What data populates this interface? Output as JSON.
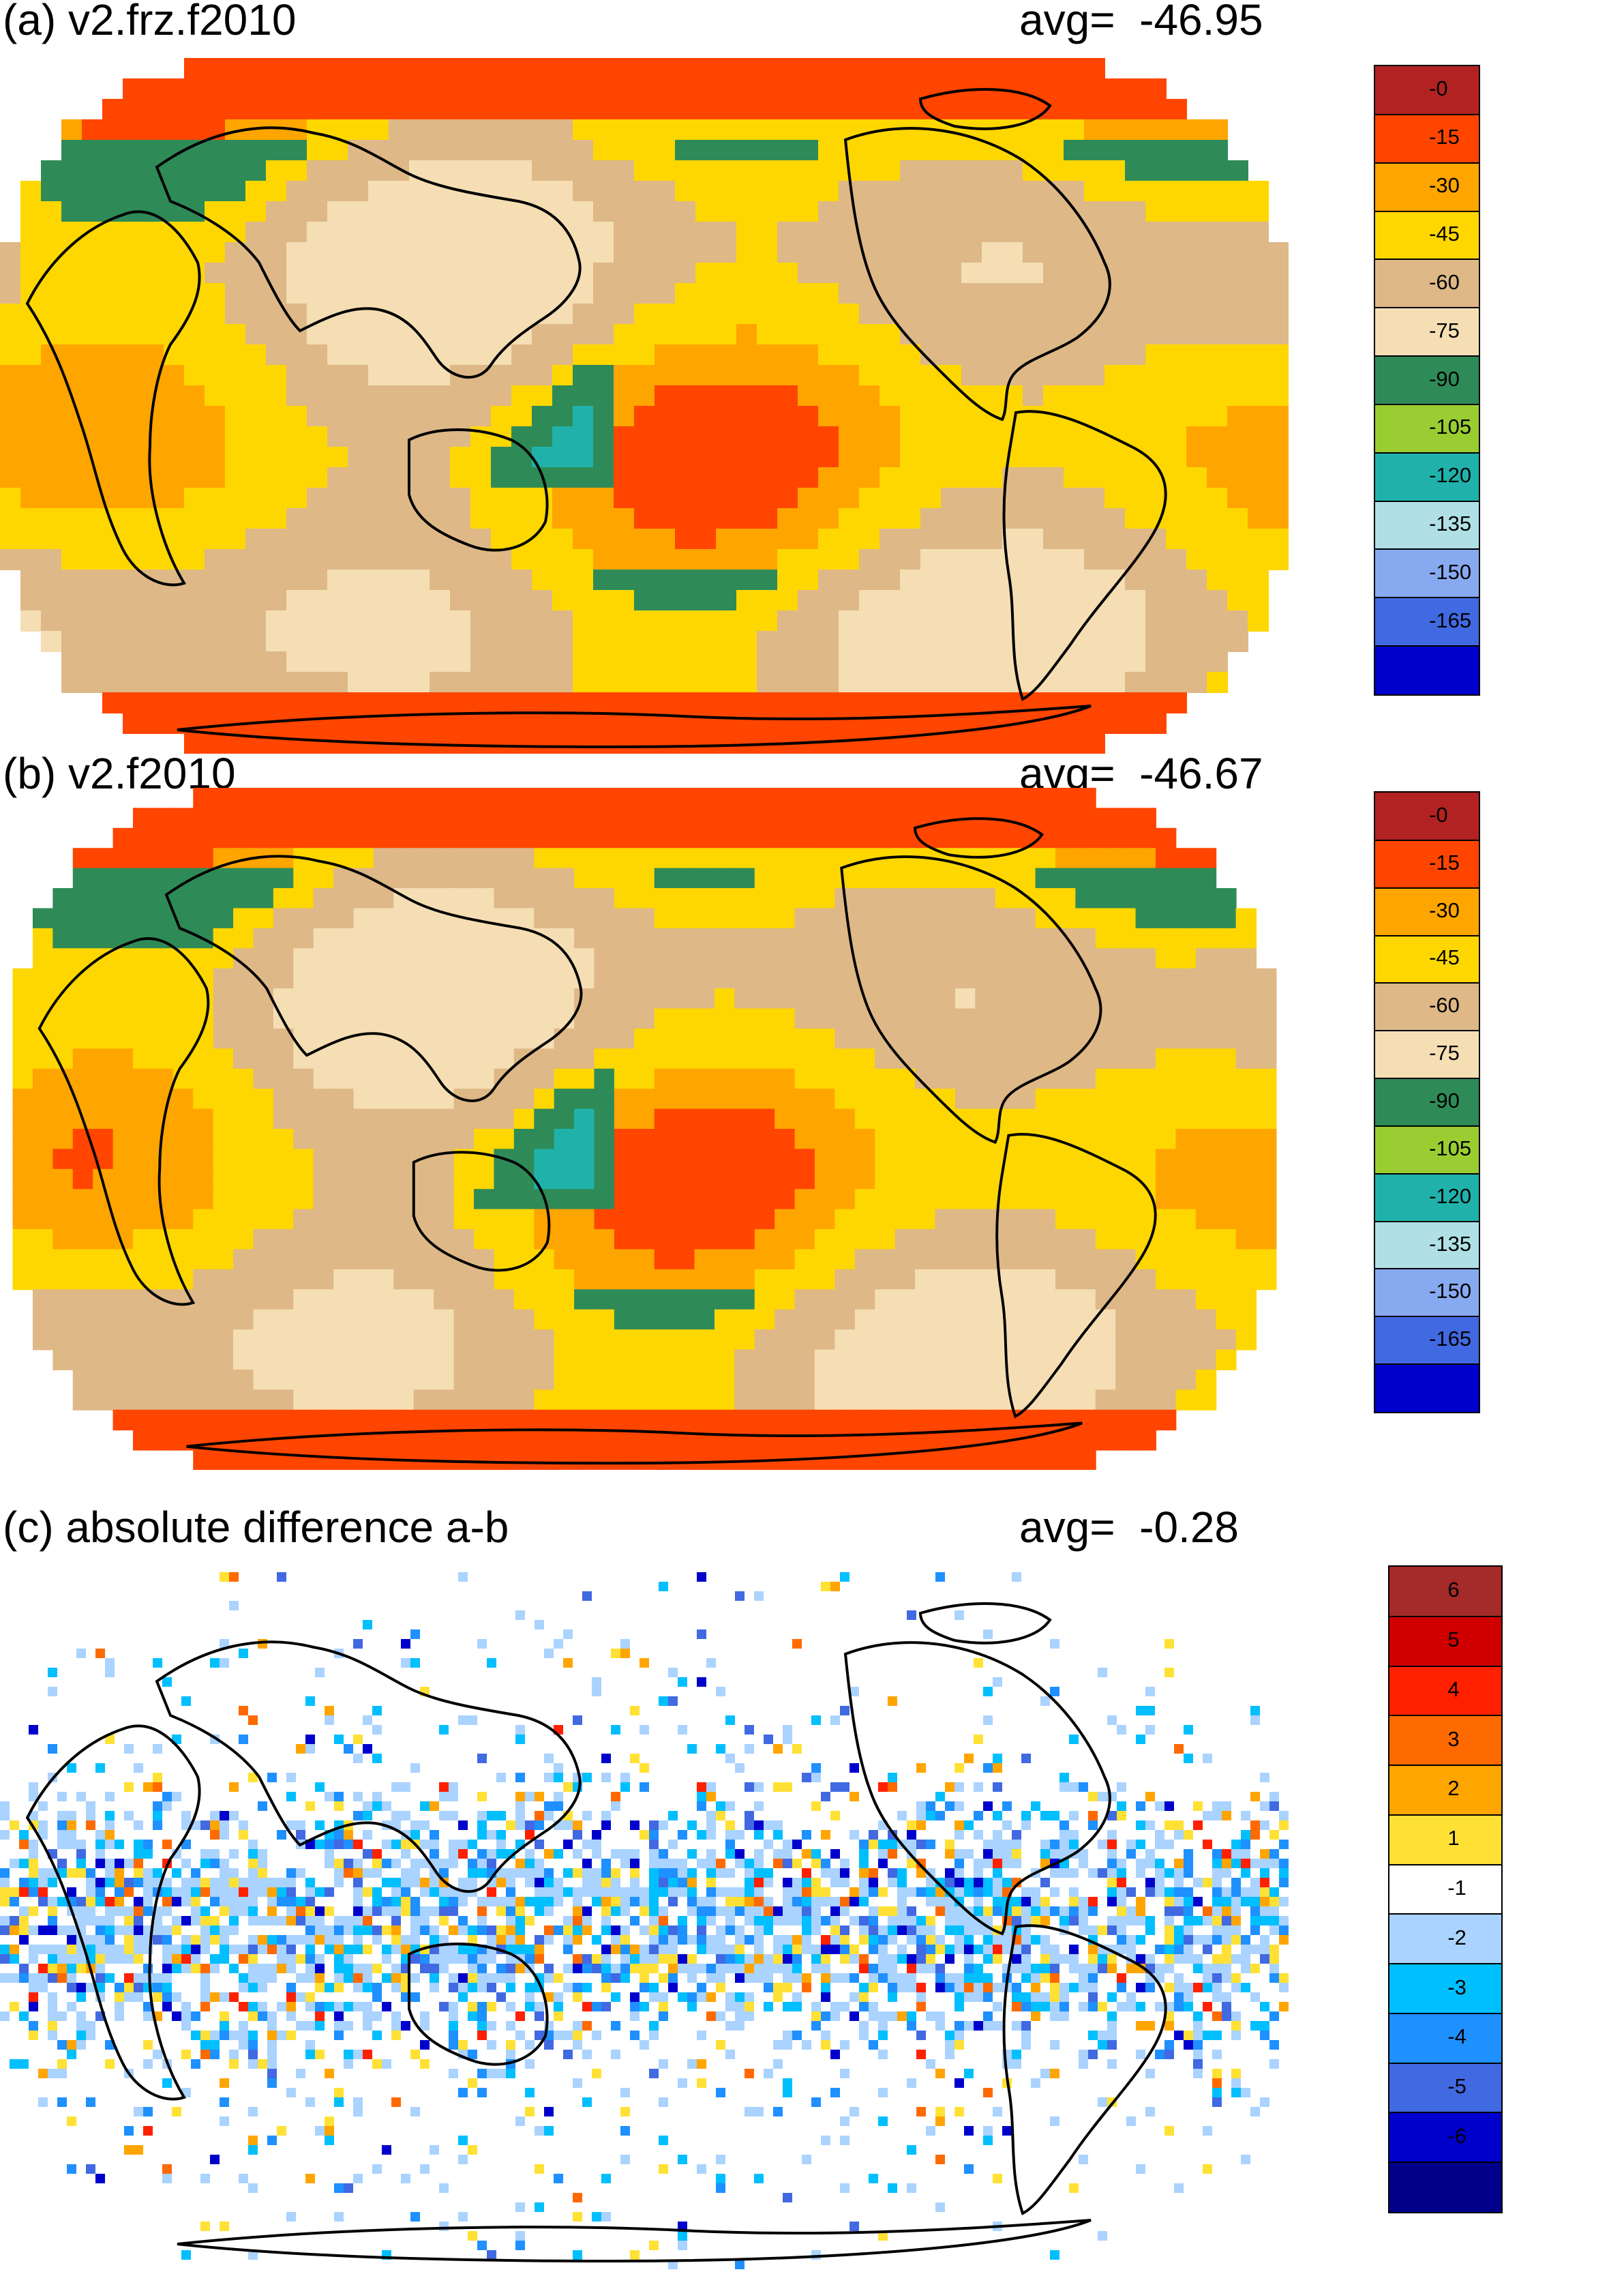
{
  "panels": [
    {
      "title": "(a) v2.frz.f2010",
      "avg_label": "avg=",
      "avg_value": "-46.95",
      "colorbar": {
        "colors": [
          "#b22222",
          "#ff4500",
          "#ffa500",
          "#ffd700",
          "#deb887",
          "#f5deb3",
          "#2e8b57",
          "#9acd32",
          "#20b2aa",
          "#b0e0e6",
          "#87a9f0",
          "#4169e1",
          "#0000cd"
        ],
        "labels": [
          "-0",
          "-15",
          "-30",
          "-45",
          "-60",
          "-75",
          "-90",
          "-105",
          "-120",
          "-135",
          "-150",
          "-165"
        ]
      }
    },
    {
      "title": "(b) v2.f2010",
      "avg_label": "avg=",
      "avg_value": "-46.67",
      "colorbar": {
        "colors": [
          "#b22222",
          "#ff4500",
          "#ffa500",
          "#ffd700",
          "#deb887",
          "#f5deb3",
          "#2e8b57",
          "#9acd32",
          "#20b2aa",
          "#b0e0e6",
          "#87a9f0",
          "#4169e1",
          "#0000cd"
        ],
        "labels": [
          "-0",
          "-15",
          "-30",
          "-45",
          "-60",
          "-75",
          "-90",
          "-105",
          "-120",
          "-135",
          "-150",
          "-165"
        ]
      }
    },
    {
      "title": "(c) absolute difference a-b",
      "avg_label": "avg=",
      "avg_value": "-0.28",
      "colorbar": {
        "colors": [
          "#a52a2a",
          "#d00000",
          "#ff2000",
          "#ff6a00",
          "#ffa500",
          "#ffe135",
          "#ffffff",
          "#aad3ff",
          "#00bfff",
          "#1e90ff",
          "#4169e1",
          "#0000cd",
          "#00008b"
        ],
        "labels": [
          "6",
          "5",
          "4",
          "3",
          "2",
          "1",
          "-1",
          "-2",
          "-3",
          "-4",
          "-5",
          "-6"
        ]
      }
    }
  ]
}
